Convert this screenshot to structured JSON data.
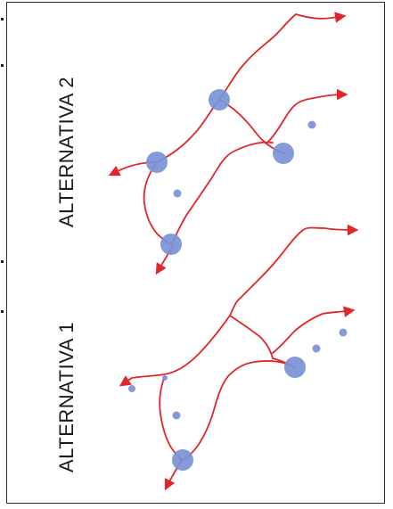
{
  "labels": {
    "alt1": "ALTERNATIVA 1",
    "alt2": "ALTERNATIVA 2"
  },
  "colors": {
    "route": "#e0262a",
    "node": "#7a93d6",
    "border": "#2a2a2a"
  }
}
